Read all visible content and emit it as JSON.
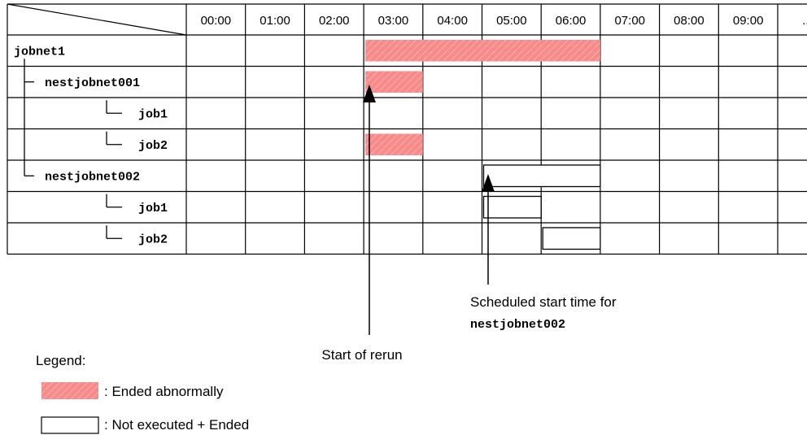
{
  "timeline": {
    "hours": [
      "00:00",
      "01:00",
      "02:00",
      "03:00",
      "04:00",
      "05:00",
      "06:00",
      "07:00",
      "08:00",
      "09:00",
      "..."
    ]
  },
  "rows": [
    {
      "label": "jobnet1",
      "indent": 0
    },
    {
      "label": "nestjobnet001",
      "indent": 1
    },
    {
      "label": "job1",
      "indent": 2
    },
    {
      "label": "job2",
      "indent": 2
    },
    {
      "label": "nestjobnet002",
      "indent": 1
    },
    {
      "label": "job1",
      "indent": 2
    },
    {
      "label": "job2",
      "indent": 2
    }
  ],
  "bars": [
    {
      "row": 0,
      "start": 3,
      "end": 6,
      "status": "abnormal"
    },
    {
      "row": 1,
      "start": 3,
      "end": 3,
      "status": "abnormal"
    },
    {
      "row": 3,
      "start": 3,
      "end": 3,
      "status": "abnormal"
    },
    {
      "row": 4,
      "start": 5,
      "end": 6,
      "status": "not-executed"
    },
    {
      "row": 5,
      "start": 5,
      "end": 5,
      "status": "not-executed"
    },
    {
      "row": 6,
      "start": 6,
      "end": 6,
      "status": "not-executed"
    }
  ],
  "annotations": {
    "rerun": {
      "text": "Start of rerun",
      "hour": 3
    },
    "scheduled": {
      "line1": "Scheduled start time for",
      "line2": "nestjobnet002",
      "hour": 5
    }
  },
  "legend": {
    "title": "Legend:",
    "abnormal": ": Ended abnormally",
    "not_executed": ": Not executed + Ended"
  },
  "colors": {
    "abnormal_fill": "#f88a8a",
    "abnormal_hatch": "#f4a6a6",
    "grid": "#000000"
  }
}
